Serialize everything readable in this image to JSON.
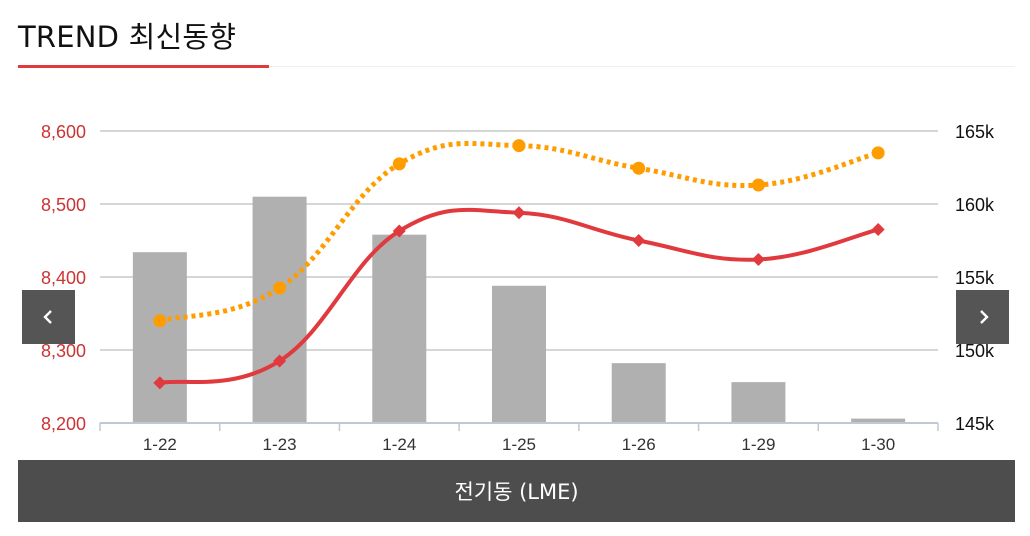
{
  "header": {
    "title": "TREND 최신동향"
  },
  "footer": {
    "label": "전기동 (LME)"
  },
  "icons": {
    "prev": "chevron-left-icon",
    "next": "chevron-right-icon"
  },
  "colors": {
    "left_axis_text": "#cc3333",
    "bars": "#b0b0b0",
    "series_red": "#e03a3e",
    "series_orange": "#ff9d00",
    "grid": "#c8c8c8",
    "nav_bg": "#555555",
    "footer_bg": "#4d4d4d"
  },
  "chart_data": {
    "type": "bar+line",
    "categories": [
      "1-22",
      "1-23",
      "1-24",
      "1-25",
      "1-26",
      "1-29",
      "1-30"
    ],
    "y_left": {
      "ticks": [
        8200,
        8300,
        8400,
        8500,
        8600
      ],
      "tick_labels": [
        "8,200",
        "8,300",
        "8,400",
        "8,500",
        "8,600"
      ],
      "range": [
        8200,
        8600
      ]
    },
    "y_right": {
      "ticks": [
        145000,
        150000,
        155000,
        160000,
        165000
      ],
      "tick_labels": [
        "145k",
        "150k",
        "155k",
        "160k",
        "165k"
      ],
      "range": [
        145000,
        165000
      ]
    },
    "grid": true,
    "series": [
      {
        "kind": "bar",
        "axis": "right",
        "color": "#b0b0b0",
        "values": [
          156700,
          160500,
          157900,
          154400,
          149100,
          147800,
          145300
        ]
      },
      {
        "kind": "line",
        "axis": "left",
        "style": "solid",
        "marker": "diamond",
        "color": "#e03a3e",
        "values": [
          8255,
          8285,
          8463,
          8488,
          8450,
          8424,
          8465
        ]
      },
      {
        "kind": "line",
        "axis": "left",
        "style": "dotted",
        "marker": "circle",
        "color": "#ff9d00",
        "values": [
          8340,
          8385,
          8555,
          8580,
          8549,
          8526,
          8570
        ]
      }
    ]
  }
}
